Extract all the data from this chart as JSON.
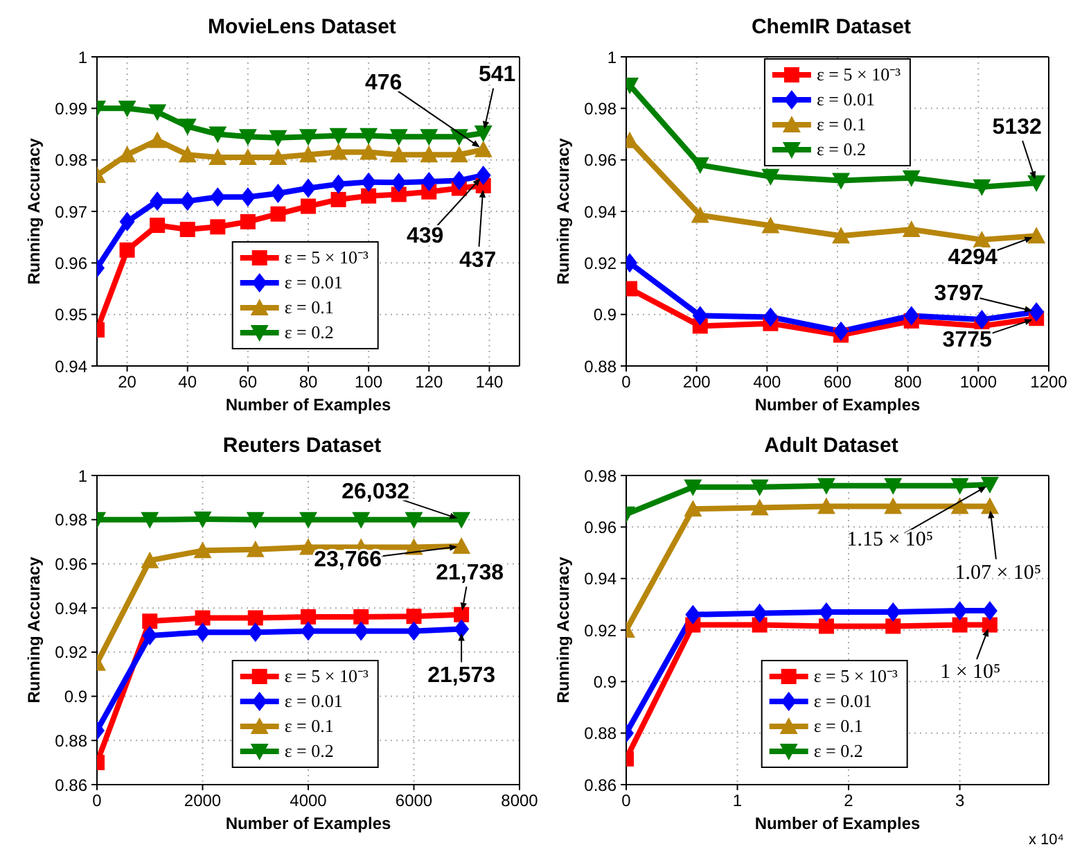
{
  "chart_data": [
    {
      "type": "line",
      "title": "MovieLens Dataset",
      "xlabel": "Number of Examples",
      "ylabel": "Running Accuracy",
      "x": [
        10,
        20,
        30,
        40,
        50,
        60,
        70,
        80,
        90,
        100,
        110,
        120,
        130,
        138
      ],
      "series": [
        {
          "name": "ε = 5 × 10⁻³",
          "color": "#ff0000",
          "marker": "square",
          "values": [
            0.947,
            0.9625,
            0.9673,
            0.9665,
            0.967,
            0.968,
            0.9695,
            0.971,
            0.9723,
            0.973,
            0.9733,
            0.9738,
            0.9745,
            0.975
          ]
        },
        {
          "name": "ε = 0.01",
          "color": "#0000ff",
          "marker": "diamond",
          "values": [
            0.959,
            0.968,
            0.972,
            0.972,
            0.9728,
            0.9728,
            0.9735,
            0.9745,
            0.9753,
            0.9757,
            0.9756,
            0.9758,
            0.976,
            0.977
          ]
        },
        {
          "name": "ε = 0.1",
          "color": "#b8860b",
          "marker": "triangle",
          "values": [
            0.977,
            0.981,
            0.9838,
            0.981,
            0.9805,
            0.9805,
            0.9805,
            0.981,
            0.9815,
            0.9815,
            0.981,
            0.981,
            0.981,
            0.982
          ]
        },
        {
          "name": "ε = 0.2",
          "color": "#008000",
          "marker": "triangle-down",
          "values": [
            0.99,
            0.99,
            0.9893,
            0.9865,
            0.985,
            0.9845,
            0.9843,
            0.9845,
            0.9847,
            0.9847,
            0.9845,
            0.9845,
            0.9845,
            0.9852
          ]
        }
      ],
      "xlim": [
        10,
        150
      ],
      "xticks": [
        20,
        40,
        60,
        80,
        100,
        120,
        140
      ],
      "ylim": [
        0.94,
        1
      ],
      "yticks": [
        0.94,
        0.95,
        0.96,
        0.97,
        0.98,
        0.99,
        1
      ],
      "grid": true,
      "legend": "bottom",
      "line_style": "solid",
      "annotations": [
        {
          "text": "476",
          "x": 138,
          "y": 0.982
        },
        {
          "text": "541",
          "x": 138,
          "y": 0.9852
        },
        {
          "text": "439",
          "x": 138,
          "y": 0.977
        },
        {
          "text": "437",
          "x": 138,
          "y": 0.975
        }
      ]
    },
    {
      "type": "line",
      "title": "ChemIR Dataset",
      "xlabel": "Number of Examples",
      "ylabel": "Running Accuracy",
      "x": [
        10,
        210,
        410,
        610,
        810,
        1010,
        1165
      ],
      "series": [
        {
          "name": "ε = 5 × 10⁻³",
          "color": "#ff0000",
          "marker": "square",
          "values": [
            0.91,
            0.8955,
            0.8965,
            0.892,
            0.8975,
            0.8955,
            0.8985
          ]
        },
        {
          "name": "ε = 0.01",
          "color": "#0000ff",
          "marker": "diamond",
          "values": [
            0.92,
            0.8995,
            0.899,
            0.8935,
            0.8995,
            0.898,
            0.901
          ]
        },
        {
          "name": "ε = 0.1",
          "color": "#b8860b",
          "marker": "triangle",
          "values": [
            0.9675,
            0.9385,
            0.9345,
            0.9305,
            0.933,
            0.929,
            0.9305
          ]
        },
        {
          "name": "ε = 0.2",
          "color": "#008000",
          "marker": "triangle-down",
          "values": [
            0.989,
            0.958,
            0.9535,
            0.952,
            0.953,
            0.9495,
            0.951
          ]
        }
      ],
      "xlim": [
        0,
        1200
      ],
      "xticks": [
        0,
        200,
        400,
        600,
        800,
        1000,
        1200
      ],
      "ylim": [
        0.88,
        1
      ],
      "yticks": [
        0.88,
        0.9,
        0.92,
        0.94,
        0.96,
        0.98,
        1
      ],
      "grid": true,
      "legend": "top",
      "line_style": "solid",
      "annotations": [
        {
          "text": "5132",
          "x": 1165,
          "y": 0.951
        },
        {
          "text": "4294",
          "x": 1165,
          "y": 0.9305
        },
        {
          "text": "3797",
          "x": 1165,
          "y": 0.901
        },
        {
          "text": "3775",
          "x": 1165,
          "y": 0.8985
        }
      ]
    },
    {
      "type": "line",
      "title": "Reuters Dataset",
      "xlabel": "Number of Examples",
      "ylabel": "Running Accuracy",
      "x": [
        0,
        1000,
        2000,
        3000,
        4000,
        5000,
        6000,
        6900
      ],
      "series": [
        {
          "name": "ε = 5 × 10⁻³",
          "color": "#ff0000",
          "marker": "square",
          "values": [
            0.87,
            0.934,
            0.9355,
            0.9355,
            0.936,
            0.936,
            0.9362,
            0.937
          ]
        },
        {
          "name": "ε = 0.01",
          "color": "#0000ff",
          "marker": "diamond",
          "values": [
            0.8845,
            0.9275,
            0.929,
            0.929,
            0.9295,
            0.9295,
            0.9295,
            0.9305
          ]
        },
        {
          "name": "ε = 0.1",
          "color": "#b8860b",
          "marker": "triangle",
          "values": [
            0.915,
            0.9615,
            0.966,
            0.9665,
            0.9675,
            0.9675,
            0.9675,
            0.968
          ]
        },
        {
          "name": "ε = 0.2",
          "color": "#008000",
          "marker": "triangle-down",
          "values": [
            0.98,
            0.98,
            0.9802,
            0.98,
            0.98,
            0.98,
            0.98,
            0.98
          ]
        }
      ],
      "xlim": [
        0,
        8000
      ],
      "xticks": [
        0,
        2000,
        4000,
        6000,
        8000
      ],
      "ylim": [
        0.86,
        1
      ],
      "yticks": [
        0.86,
        0.88,
        0.9,
        0.92,
        0.94,
        0.96,
        0.98,
        1
      ],
      "grid": true,
      "legend": "bottom",
      "line_style": "solid",
      "annotations": [
        {
          "text": "26,032",
          "x": 6900,
          "y": 0.98
        },
        {
          "text": "23,766",
          "x": 6900,
          "y": 0.968
        },
        {
          "text": "21,738",
          "x": 6900,
          "y": 0.937
        },
        {
          "text": "21,573",
          "x": 6900,
          "y": 0.9305
        }
      ]
    },
    {
      "type": "line",
      "title": "Adult Dataset",
      "xlabel": "Number of Examples",
      "ylabel": "Running Accuracy",
      "x": [
        0,
        0.6,
        1.2,
        1.8,
        2.4,
        3.0,
        3.27
      ],
      "series": [
        {
          "name": "ε = 5 × 10⁻³",
          "color": "#ff0000",
          "marker": "square",
          "values": [
            0.87,
            0.922,
            0.922,
            0.9215,
            0.9215,
            0.922,
            0.922
          ]
        },
        {
          "name": "ε = 0.01",
          "color": "#0000ff",
          "marker": "diamond",
          "values": [
            0.88,
            0.926,
            0.9265,
            0.927,
            0.927,
            0.9275,
            0.9275
          ]
        },
        {
          "name": "ε = 0.1",
          "color": "#b8860b",
          "marker": "triangle",
          "values": [
            0.92,
            0.967,
            0.9675,
            0.968,
            0.968,
            0.968,
            0.968
          ]
        },
        {
          "name": "ε = 0.2",
          "color": "#008000",
          "marker": "triangle-down",
          "values": [
            0.965,
            0.9755,
            0.9755,
            0.976,
            0.976,
            0.976,
            0.9765
          ]
        }
      ],
      "xlim": [
        0,
        3.8
      ],
      "xticks": [
        0,
        1,
        2,
        3
      ],
      "ylim": [
        0.86,
        0.98
      ],
      "yticks": [
        0.86,
        0.88,
        0.9,
        0.92,
        0.94,
        0.96,
        0.98
      ],
      "grid": true,
      "legend": "bottom",
      "line_style": "solid",
      "annotations": [
        {
          "text": "1.15 × 10⁵",
          "x": 3.27,
          "y": 0.9765
        },
        {
          "text": "1.07 × 10⁵",
          "x": 3.27,
          "y": 0.968
        },
        {
          "text": "1 × 10⁵",
          "x": 3.27,
          "y": 0.922
        },
        "x 10⁴"
      ]
    }
  ]
}
